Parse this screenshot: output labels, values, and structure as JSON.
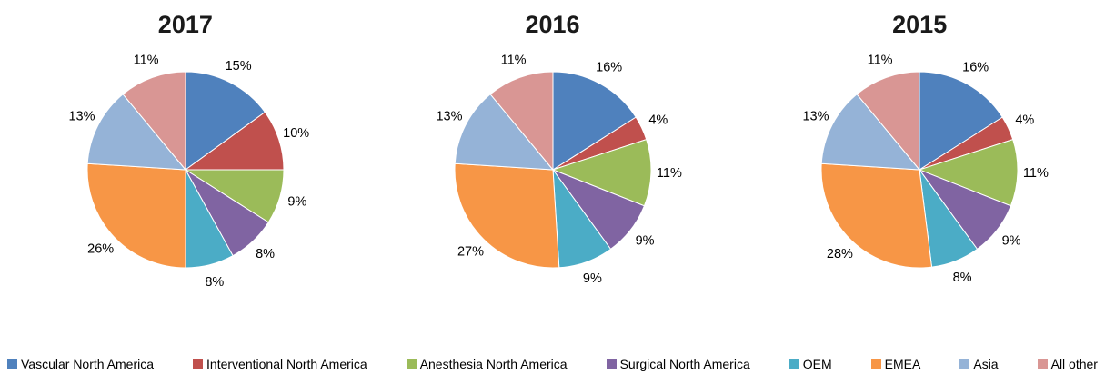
{
  "legend": {
    "items": [
      {
        "label": "Vascular North America",
        "color": "#4F81BD"
      },
      {
        "label": "Interventional North America",
        "color": "#C0504D"
      },
      {
        "label": "Anesthesia North America",
        "color": "#9BBB59"
      },
      {
        "label": "Surgical North America",
        "color": "#8064A2"
      },
      {
        "label": "OEM",
        "color": "#4BACC6"
      },
      {
        "label": "EMEA",
        "color": "#F79646"
      },
      {
        "label": "Asia",
        "color": "#95B3D7"
      },
      {
        "label": "All other",
        "color": "#D99694"
      }
    ]
  },
  "chart_data": [
    {
      "type": "pie",
      "title": "2017",
      "categories": [
        "Vascular North America",
        "Interventional North America",
        "Anesthesia North America",
        "Surgical North America",
        "OEM",
        "EMEA",
        "Asia",
        "All other"
      ],
      "values": [
        15,
        10,
        9,
        8,
        8,
        26,
        13,
        11
      ],
      "value_labels": [
        "15%",
        "10%",
        "9%",
        "8%",
        "8%",
        "26%",
        "13%",
        "11%"
      ],
      "start_angle_deg": -90,
      "direction": "clockwise",
      "legend_position": "bottom"
    },
    {
      "type": "pie",
      "title": "2016",
      "categories": [
        "Vascular North America",
        "Interventional North America",
        "Anesthesia North America",
        "Surgical North America",
        "OEM",
        "EMEA",
        "Asia",
        "All other"
      ],
      "values": [
        16,
        4,
        11,
        9,
        9,
        27,
        13,
        11
      ],
      "value_labels": [
        "16%",
        "4%",
        "11%",
        "9%",
        "9%",
        "27%",
        "13%",
        "11%"
      ],
      "start_angle_deg": -90,
      "direction": "clockwise",
      "legend_position": "bottom"
    },
    {
      "type": "pie",
      "title": "2015",
      "categories": [
        "Vascular North America",
        "Interventional North America",
        "Anesthesia North America",
        "Surgical North America",
        "OEM",
        "EMEA",
        "Asia",
        "All other"
      ],
      "values": [
        16,
        4,
        11,
        9,
        8,
        28,
        13,
        11
      ],
      "value_labels": [
        "16%",
        "4%",
        "11%",
        "9%",
        "8%",
        "28%",
        "13%",
        "11%"
      ],
      "start_angle_deg": -90,
      "direction": "clockwise",
      "legend_position": "bottom"
    }
  ]
}
